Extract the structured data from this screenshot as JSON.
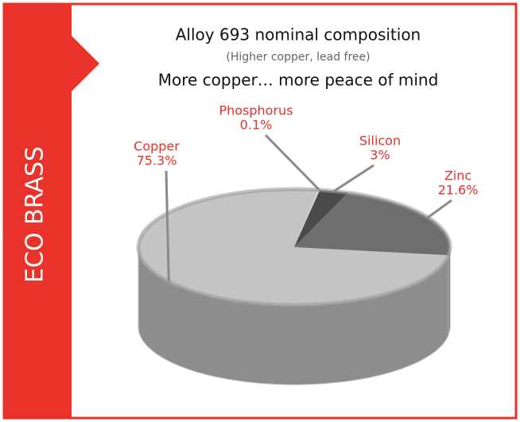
{
  "banner": "ECO BRASS",
  "chart_data": {
    "type": "pie",
    "title": "Alloy 693 nominal composition",
    "subtitle": "(Higher copper, lead free)",
    "tagline": "More copper… more peace of mind",
    "categories": [
      "Copper",
      "Phosphorus",
      "Silicon",
      "Zinc"
    ],
    "values": [
      75.3,
      0.1,
      3,
      21.6
    ],
    "value_labels": [
      "75.3%",
      "0.1%",
      "3%",
      "21.6%"
    ],
    "colors": [
      "#c4c4c4",
      "#ececec",
      "#4a4a4b",
      "#6d6e70"
    ]
  }
}
